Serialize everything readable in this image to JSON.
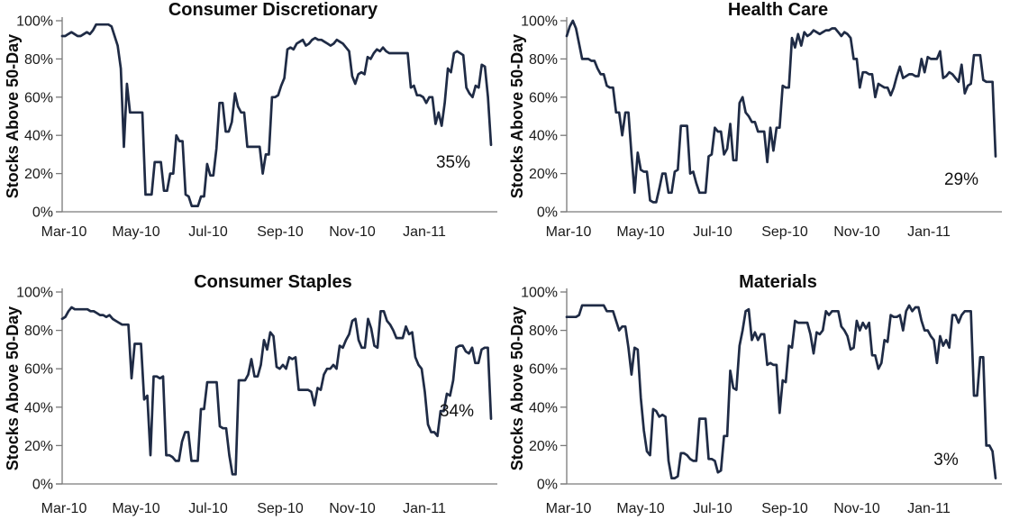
{
  "style": {
    "line_color": "#1f2b45",
    "axis_color": "#7a7a7a",
    "text_color": "#1a1a1a",
    "background": "#ffffff"
  },
  "chart_data": [
    {
      "type": "line",
      "title": "Consumer Discretionary",
      "ylabel": "Stocks Above 50-Day",
      "xlabel": "",
      "ylim": [
        0,
        100
      ],
      "grid": false,
      "legend": false,
      "y_tick_labels": [
        "100%",
        "80%",
        "60%",
        "40%",
        "20%",
        "0%"
      ],
      "x_tick_labels": [
        "Mar-10",
        "May-10",
        "Jul-10",
        "Sep-10",
        "Nov-10",
        "Jan-11"
      ],
      "annotation": "35%",
      "last_value_pct": 35,
      "values_pct": [
        92,
        92,
        93,
        94,
        93,
        92,
        92,
        93,
        94,
        93,
        95,
        98,
        98,
        98,
        98,
        98,
        97,
        92,
        87,
        75,
        34,
        67,
        52,
        52,
        52,
        52,
        52,
        9,
        9,
        9,
        26,
        26,
        26,
        11,
        11,
        20,
        20,
        40,
        37,
        37,
        9,
        8,
        3,
        3,
        3,
        8,
        8,
        25,
        19,
        19,
        33,
        57,
        57,
        42,
        42,
        47,
        62,
        55,
        52,
        52,
        34,
        34,
        34,
        34,
        34,
        20,
        30,
        30,
        60,
        60,
        61,
        66,
        70,
        85,
        86,
        85,
        88,
        89,
        90,
        87,
        88,
        90,
        91,
        90,
        90,
        89,
        88,
        87,
        88,
        90,
        89,
        88,
        86,
        84,
        71,
        67,
        72,
        73,
        72,
        81,
        80,
        83,
        85,
        84,
        86,
        84,
        83,
        83,
        83,
        83,
        83,
        83,
        83,
        65,
        66,
        61,
        61,
        60,
        57,
        60,
        60,
        46,
        52,
        45,
        57,
        75,
        73,
        83,
        84,
        83,
        82,
        65,
        62,
        60,
        66,
        65,
        77,
        76,
        60,
        35
      ]
    },
    {
      "type": "line",
      "title": "Health Care",
      "ylabel": "Stocks Above 50-Day",
      "xlabel": "",
      "ylim": [
        0,
        100
      ],
      "grid": false,
      "legend": false,
      "y_tick_labels": [
        "100%",
        "80%",
        "60%",
        "40%",
        "20%",
        "0%"
      ],
      "x_tick_labels": [
        "Mar-10",
        "May-10",
        "Jul-10",
        "Sep-10",
        "Nov-10",
        "Jan-11"
      ],
      "annotation": "29%",
      "last_value_pct": 29,
      "values_pct": [
        92,
        97,
        100,
        96,
        88,
        80,
        80,
        80,
        79,
        79,
        75,
        72,
        72,
        66,
        65,
        65,
        52,
        52,
        40,
        52,
        52,
        30,
        10,
        31,
        22,
        21,
        21,
        6,
        5,
        5,
        12,
        20,
        20,
        10,
        10,
        21,
        22,
        45,
        45,
        45,
        20,
        21,
        15,
        10,
        10,
        10,
        29,
        30,
        44,
        42,
        42,
        30,
        33,
        46,
        27,
        27,
        57,
        60,
        52,
        50,
        47,
        47,
        42,
        42,
        42,
        26,
        44,
        32,
        44,
        44,
        66,
        65,
        65,
        91,
        86,
        93,
        87,
        94,
        92,
        93,
        95,
        94,
        93,
        94,
        95,
        95,
        96,
        96,
        94,
        92,
        94,
        93,
        91,
        80,
        80,
        65,
        73,
        73,
        72,
        72,
        60,
        67,
        66,
        65,
        65,
        61,
        65,
        71,
        76,
        70,
        71,
        72,
        72,
        71,
        71,
        80,
        73,
        81,
        80,
        80,
        80,
        84,
        70,
        71,
        73,
        72,
        70,
        68,
        77,
        62,
        66,
        67,
        82,
        82,
        82,
        69,
        68,
        68,
        68,
        29
      ]
    },
    {
      "type": "line",
      "title": "Consumer Staples",
      "ylabel": "Stocks Above 50-Day",
      "xlabel": "",
      "ylim": [
        0,
        100
      ],
      "grid": false,
      "legend": false,
      "y_tick_labels": [
        "100%",
        "80%",
        "60%",
        "40%",
        "20%",
        "0%"
      ],
      "x_tick_labels": [
        "Mar-10",
        "May-10",
        "Jul-10",
        "Sep-10",
        "Nov-10",
        "Jan-11"
      ],
      "annotation": "34%",
      "last_value_pct": 34,
      "values_pct": [
        86,
        87,
        90,
        92,
        91,
        91,
        91,
        91,
        91,
        90,
        90,
        89,
        88,
        88,
        87,
        88,
        86,
        85,
        84,
        83,
        83,
        83,
        55,
        73,
        73,
        73,
        44,
        46,
        15,
        56,
        56,
        55,
        56,
        15,
        15,
        14,
        12,
        12,
        22,
        27,
        27,
        12,
        12,
        12,
        39,
        39,
        53,
        53,
        53,
        53,
        30,
        29,
        29,
        15,
        5,
        5,
        54,
        54,
        54,
        57,
        65,
        56,
        56,
        62,
        75,
        70,
        79,
        77,
        61,
        60,
        62,
        60,
        66,
        65,
        66,
        49,
        49,
        49,
        49,
        48,
        41,
        50,
        49,
        57,
        60,
        60,
        62,
        60,
        72,
        71,
        75,
        78,
        85,
        86,
        75,
        71,
        71,
        86,
        81,
        72,
        71,
        90,
        90,
        85,
        83,
        80,
        76,
        76,
        76,
        82,
        78,
        79,
        66,
        62,
        60,
        48,
        31,
        27,
        27,
        25,
        38,
        38,
        47,
        46,
        54,
        71,
        72,
        72,
        69,
        68,
        71,
        63,
        63,
        70,
        71,
        71,
        34
      ]
    },
    {
      "type": "line",
      "title": "Materials",
      "ylabel": "Stocks Above 50-Day",
      "xlabel": "",
      "ylim": [
        0,
        100
      ],
      "grid": false,
      "legend": false,
      "y_tick_labels": [
        "100%",
        "80%",
        "60%",
        "40%",
        "20%",
        "0%"
      ],
      "x_tick_labels": [
        "Mar-10",
        "May-10",
        "Jul-10",
        "Sep-10",
        "Nov-10",
        "Jan-11"
      ],
      "annotation": "3%",
      "last_value_pct": 3,
      "values_pct": [
        87,
        87,
        87,
        87,
        88,
        93,
        93,
        93,
        93,
        93,
        93,
        93,
        93,
        90,
        90,
        90,
        85,
        80,
        82,
        82,
        71,
        57,
        71,
        70,
        45,
        28,
        17,
        15,
        39,
        38,
        35,
        36,
        35,
        12,
        3,
        3,
        4,
        16,
        16,
        15,
        13,
        12,
        12,
        34,
        34,
        34,
        13,
        13,
        12,
        6,
        7,
        25,
        25,
        59,
        50,
        49,
        72,
        80,
        90,
        91,
        75,
        79,
        75,
        78,
        78,
        62,
        63,
        62,
        62,
        37,
        54,
        53,
        72,
        71,
        85,
        84,
        84,
        84,
        84,
        78,
        68,
        79,
        78,
        80,
        90,
        88,
        90,
        90,
        90,
        82,
        80,
        77,
        70,
        71,
        85,
        80,
        84,
        81,
        84,
        67,
        67,
        60,
        63,
        75,
        74,
        88,
        87,
        87,
        88,
        80,
        90,
        93,
        90,
        92,
        92,
        85,
        80,
        80,
        77,
        75,
        63,
        77,
        72,
        75,
        71,
        88,
        88,
        84,
        88,
        90,
        90,
        90,
        46,
        46,
        66,
        66,
        20,
        20,
        17,
        3
      ]
    }
  ]
}
